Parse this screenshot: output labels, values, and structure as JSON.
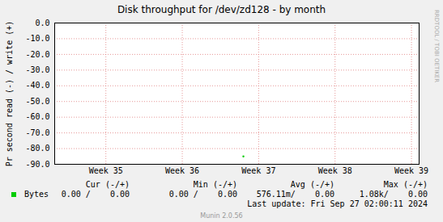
{
  "chart_data": {
    "type": "line",
    "title": "Disk throughput for /dev/zd128 - by month",
    "y_label": "Pr second read (-) / write (+)",
    "watermark": "RRDTOOL / TOBI OETIKER",
    "x": [
      34.33,
      36.7,
      36.78,
      36.8,
      36.82,
      36.9,
      39.1
    ],
    "series": [
      {
        "name": "Bytes",
        "color": "#00cc00",
        "values": [
          0,
          0,
          null,
          -85,
          null,
          0,
          0
        ],
        "cur": "0.00 /    0.00",
        "min": "0.00 /    0.00",
        "avg": "576.11m/    0.00",
        "max": "1.08k/    0.00"
      }
    ],
    "summary_columns": [
      "Cur (-/+)",
      "Min (-/+)",
      "Avg (-/+)",
      "Max (-/+)"
    ],
    "xlim": [
      34.33,
      39.1
    ],
    "xticks": [
      {
        "value": 35,
        "label": "Week 35"
      },
      {
        "value": 36,
        "label": "Week 36"
      },
      {
        "value": 37,
        "label": "Week 37"
      },
      {
        "value": 38,
        "label": "Week 38"
      },
      {
        "value": 39,
        "label": "Week 39"
      }
    ],
    "ylim": [
      -90,
      0
    ],
    "yticks": [
      {
        "value": 0,
        "label": "0.0"
      },
      {
        "value": -10,
        "label": "-10.0"
      },
      {
        "value": -20,
        "label": "-20.0"
      },
      {
        "value": -30,
        "label": "-30.0"
      },
      {
        "value": -40,
        "label": "-40.0"
      },
      {
        "value": -50,
        "label": "-50.0"
      },
      {
        "value": -60,
        "label": "-60.0"
      },
      {
        "value": -70,
        "label": "-70.0"
      },
      {
        "value": -80,
        "label": "-80.0"
      },
      {
        "value": -90,
        "label": "-90.0"
      }
    ],
    "grid": true,
    "last_update": "Last update: Fri Sep 27 02:00:11 2024",
    "footer": "Munin 2.0.56"
  }
}
